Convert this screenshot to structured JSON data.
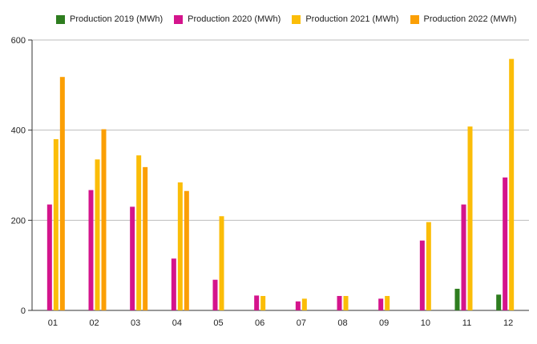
{
  "chart_data": {
    "type": "bar",
    "categories": [
      "01",
      "02",
      "03",
      "04",
      "05",
      "06",
      "07",
      "08",
      "09",
      "10",
      "11",
      "12"
    ],
    "series": [
      {
        "name": "Production 2019 (MWh)",
        "color": "#2e7d1f",
        "values": [
          null,
          null,
          null,
          null,
          null,
          null,
          null,
          null,
          null,
          null,
          48,
          35
        ]
      },
      {
        "name": "Production 2020 (MWh)",
        "color": "#d4148c",
        "values": [
          235,
          267,
          230,
          115,
          68,
          33,
          20,
          32,
          26,
          155,
          235,
          295
        ]
      },
      {
        "name": "Production 2021 (MWh)",
        "color": "#fbbd08",
        "values": [
          380,
          335,
          344,
          284,
          209,
          32,
          26,
          32,
          32,
          196,
          408,
          558
        ]
      },
      {
        "name": "Production 2022 (MWh)",
        "color": "#fb9f05",
        "values": [
          518,
          402,
          318,
          265,
          null,
          null,
          null,
          null,
          null,
          null,
          null,
          null
        ]
      }
    ],
    "yticks": [
      "0",
      "200",
      "400",
      "600"
    ],
    "ylim": [
      0,
      600
    ],
    "grid": true,
    "legend_position": "top"
  }
}
